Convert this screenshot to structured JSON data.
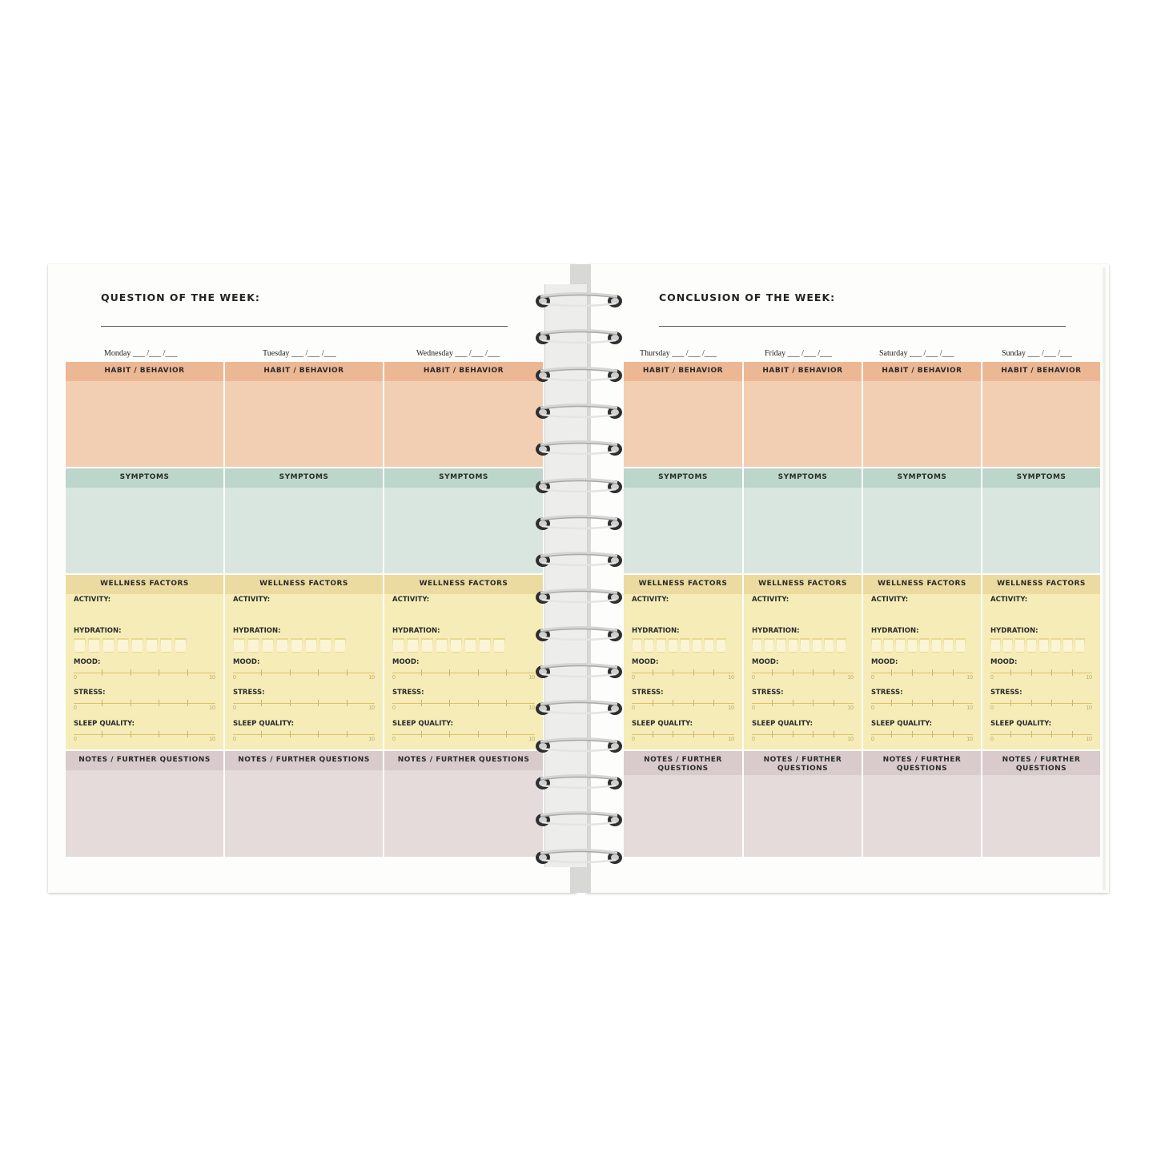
{
  "left_page": {
    "heading": "QUESTION OF THE WEEK:"
  },
  "right_page": {
    "heading": "CONCLUSION OF THE WEEK:"
  },
  "date_blanks": "___ /___ /___",
  "days": [
    {
      "name": "Monday"
    },
    {
      "name": "Tuesday"
    },
    {
      "name": "Wednesday"
    },
    {
      "name": "Thursday"
    },
    {
      "name": "Friday"
    },
    {
      "name": "Saturday"
    },
    {
      "name": "Sunday"
    }
  ],
  "sections": {
    "habit": "HABIT / BEHAVIOR",
    "symptoms": "SYMPTOMS",
    "wellness": "WELLNESS FACTORS",
    "notes": "NOTES / FURTHER QUESTIONS"
  },
  "wellness_labels": {
    "activity": "ACTIVITY:",
    "hydration": "HYDRATION:",
    "mood": "MOOD:",
    "stress": "STRESS:",
    "sleep": "SLEEP QUALITY:"
  },
  "scale": {
    "min": "0",
    "max": "10"
  },
  "hydration_cups": 8,
  "colors": {
    "habit": "#f2cfb2",
    "habit_header": "#ecb894",
    "symptoms": "#d9e6e0",
    "symptoms_header": "#bcd6cb",
    "wellness": "#f5ecb8",
    "wellness_header": "#ecdba0",
    "notes": "#e5dbdb",
    "notes_header": "#d9cbcb"
  }
}
